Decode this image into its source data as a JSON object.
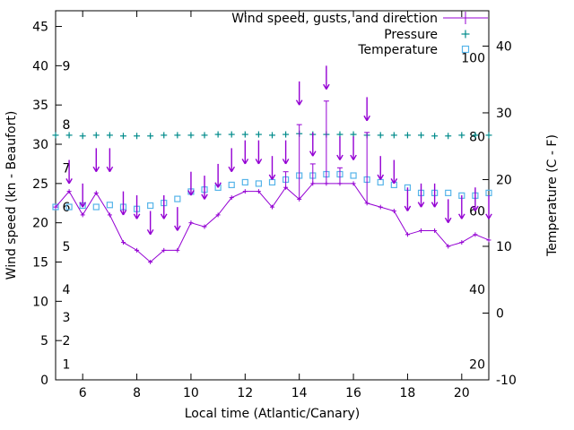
{
  "legend": [
    {
      "label": "Wind speed, gusts, and direction",
      "series": "wind"
    },
    {
      "label": "Pressure",
      "series": "pressure"
    },
    {
      "label": "Temperature",
      "series": "temperature"
    }
  ],
  "colors": {
    "wind": "#9400d3",
    "pressure": "#008b8b",
    "temperature": "#56b4e9",
    "axis": "#000000",
    "background": "#ffffff"
  },
  "axes": {
    "x": {
      "label": "Local time (Atlantic/Canary)",
      "min": 5,
      "max": 21,
      "ticks": [
        6,
        8,
        10,
        12,
        14,
        16,
        18,
        20
      ]
    },
    "y_left": {
      "label": "Wind speed (kn - Beaufort)",
      "min": 0,
      "max": 47,
      "ticks": [
        0,
        5,
        10,
        15,
        20,
        25,
        30,
        35,
        40,
        45
      ]
    },
    "y_right": {
      "label": "Temperature (C - F)",
      "min": -10,
      "max": 45.3,
      "ticks": [
        -10,
        0,
        10,
        20,
        30,
        40
      ]
    },
    "beaufort_labels": {
      "values": [
        "1",
        "2",
        "3",
        "4",
        "5",
        "6",
        "7",
        "8",
        "9"
      ],
      "positions": [
        2,
        5,
        8,
        11.5,
        17,
        22,
        27,
        32.5,
        40
      ]
    },
    "inner_scale": {
      "labels": [
        "20",
        "40",
        "60",
        "80",
        "100"
      ],
      "positions": [
        2,
        11.5,
        21.5,
        31,
        41
      ]
    }
  },
  "chart_data": {
    "type": "line",
    "title": "",
    "xlabel": "Local time (Atlantic/Canary)",
    "ylabel_left": "Wind speed (kn - Beaufort)",
    "ylabel_right": "Temperature (C - F)",
    "x": [
      5,
      5.5,
      6,
      6.5,
      7,
      7.5,
      8,
      8.5,
      9,
      9.5,
      10,
      10.5,
      11,
      11.5,
      12,
      12.5,
      13,
      13.5,
      14,
      14.5,
      15,
      15.5,
      16,
      16.5,
      17,
      17.5,
      18,
      18.5,
      19,
      19.5,
      20,
      20.5,
      21
    ],
    "series": [
      {
        "name": "wind_speed_kn",
        "values": [
          22,
          24,
          21,
          23.8,
          21,
          17.5,
          16.5,
          15,
          16.5,
          16.5,
          20,
          19.5,
          21,
          23.2,
          24,
          24,
          22,
          24.5,
          23,
          25,
          25,
          25,
          25,
          22.5,
          22,
          21.5,
          18.5,
          19,
          19,
          17,
          17.5,
          18.5,
          17.8
        ]
      },
      {
        "name": "wind_gust_kn",
        "values": [
          null,
          null,
          null,
          null,
          null,
          null,
          null,
          null,
          null,
          null,
          null,
          null,
          null,
          null,
          null,
          null,
          null,
          26.5,
          32.5,
          27.5,
          35.5,
          27,
          null,
          31.5,
          null,
          null,
          null,
          null,
          null,
          null,
          null,
          null,
          null
        ]
      },
      {
        "name": "wind_direction_arrow_tip_kn",
        "values": [
          null,
          25,
          22,
          26.5,
          26.5,
          21,
          20.5,
          18.5,
          20.5,
          19,
          23.5,
          23,
          24.5,
          26.5,
          27.5,
          27.5,
          25.5,
          27.5,
          35,
          28.5,
          37,
          28,
          28,
          33,
          25.5,
          25,
          21.5,
          22,
          22,
          20,
          20.5,
          21.5,
          20.5
        ]
      },
      {
        "name": "pressure_inner_scale",
        "values": [
          79.8,
          79.8,
          79.6,
          79.8,
          79.8,
          79.6,
          79.6,
          79.6,
          79.8,
          79.8,
          79.8,
          79.8,
          80.0,
          80.0,
          80.0,
          80.0,
          79.8,
          80.0,
          80.2,
          80.0,
          80.0,
          80.0,
          80.0,
          79.8,
          79.8,
          79.8,
          79.8,
          79.8,
          79.6,
          79.6,
          79.8,
          79.8,
          79.8
        ]
      },
      {
        "name": "temperature_c",
        "values": [
          15.9,
          15.9,
          16.1,
          15.9,
          16.2,
          15.9,
          15.6,
          16.1,
          16.5,
          17.1,
          18.2,
          18.5,
          18.8,
          19.2,
          19.6,
          19.4,
          19.6,
          20.0,
          20.6,
          20.6,
          20.8,
          20.8,
          20.6,
          20.0,
          19.6,
          19.2,
          18.8,
          18.0,
          18.0,
          18.0,
          17.6,
          17.6,
          18.0
        ]
      }
    ]
  }
}
